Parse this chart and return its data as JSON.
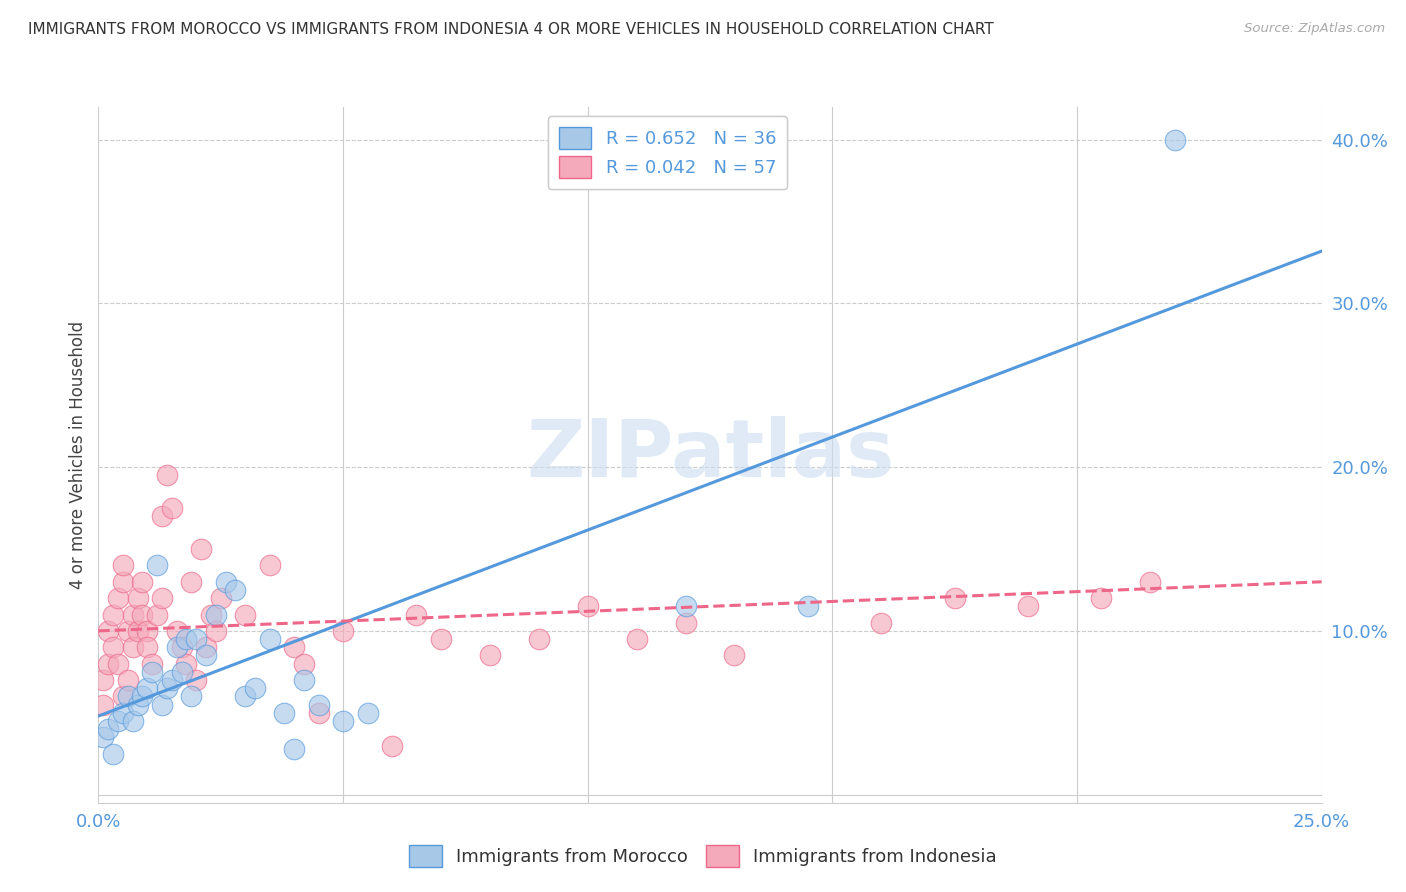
{
  "title": "IMMIGRANTS FROM MOROCCO VS IMMIGRANTS FROM INDONESIA 4 OR MORE VEHICLES IN HOUSEHOLD CORRELATION CHART",
  "source": "Source: ZipAtlas.com",
  "ylabel": "4 or more Vehicles in Household",
  "xlim": [
    0.0,
    0.25
  ],
  "ylim": [
    -0.005,
    0.42
  ],
  "x_ticks": [
    0.0,
    0.05,
    0.1,
    0.15,
    0.2,
    0.25
  ],
  "x_tick_labels": [
    "0.0%",
    "",
    "",
    "",
    "",
    "25.0%"
  ],
  "y_ticks": [
    0.0,
    0.1,
    0.2,
    0.3,
    0.4
  ],
  "y_tick_labels": [
    "",
    "10.0%",
    "20.0%",
    "30.0%",
    "40.0%"
  ],
  "morocco_color": "#a8c8e8",
  "indonesia_color": "#f4aabb",
  "morocco_line_color": "#5599dd",
  "indonesia_line_color": "#ee6688",
  "R_morocco": 0.652,
  "N_morocco": 36,
  "R_indonesia": 0.042,
  "N_indonesia": 57,
  "watermark": "ZIPatlas",
  "blue_line_x": [
    0.0,
    0.25
  ],
  "blue_line_y": [
    0.048,
    0.332
  ],
  "pink_line_x": [
    0.0,
    0.25
  ],
  "pink_line_y": [
    0.1,
    0.13
  ],
  "morocco_scatter_x": [
    0.001,
    0.002,
    0.003,
    0.004,
    0.005,
    0.006,
    0.007,
    0.008,
    0.009,
    0.01,
    0.011,
    0.012,
    0.013,
    0.014,
    0.015,
    0.016,
    0.017,
    0.018,
    0.019,
    0.02,
    0.022,
    0.024,
    0.026,
    0.028,
    0.03,
    0.032,
    0.035,
    0.038,
    0.04,
    0.042,
    0.045,
    0.05,
    0.055,
    0.12,
    0.145,
    0.22
  ],
  "morocco_scatter_y": [
    0.035,
    0.04,
    0.025,
    0.045,
    0.05,
    0.06,
    0.045,
    0.055,
    0.06,
    0.065,
    0.075,
    0.14,
    0.055,
    0.065,
    0.07,
    0.09,
    0.075,
    0.095,
    0.06,
    0.095,
    0.085,
    0.11,
    0.13,
    0.125,
    0.06,
    0.065,
    0.095,
    0.05,
    0.028,
    0.07,
    0.055,
    0.045,
    0.05,
    0.115,
    0.115,
    0.4
  ],
  "indonesia_scatter_x": [
    0.001,
    0.001,
    0.002,
    0.002,
    0.003,
    0.003,
    0.004,
    0.004,
    0.005,
    0.005,
    0.005,
    0.006,
    0.006,
    0.007,
    0.007,
    0.008,
    0.008,
    0.009,
    0.009,
    0.01,
    0.01,
    0.011,
    0.012,
    0.013,
    0.013,
    0.014,
    0.015,
    0.016,
    0.017,
    0.018,
    0.019,
    0.02,
    0.021,
    0.022,
    0.023,
    0.024,
    0.025,
    0.03,
    0.035,
    0.04,
    0.042,
    0.045,
    0.05,
    0.06,
    0.065,
    0.07,
    0.08,
    0.09,
    0.1,
    0.11,
    0.12,
    0.13,
    0.16,
    0.175,
    0.19,
    0.205,
    0.215
  ],
  "indonesia_scatter_y": [
    0.055,
    0.07,
    0.08,
    0.1,
    0.09,
    0.11,
    0.12,
    0.08,
    0.13,
    0.14,
    0.06,
    0.1,
    0.07,
    0.11,
    0.09,
    0.12,
    0.1,
    0.13,
    0.11,
    0.1,
    0.09,
    0.08,
    0.11,
    0.12,
    0.17,
    0.195,
    0.175,
    0.1,
    0.09,
    0.08,
    0.13,
    0.07,
    0.15,
    0.09,
    0.11,
    0.1,
    0.12,
    0.11,
    0.14,
    0.09,
    0.08,
    0.05,
    0.1,
    0.03,
    0.11,
    0.095,
    0.085,
    0.095,
    0.115,
    0.095,
    0.105,
    0.085,
    0.105,
    0.12,
    0.115,
    0.12,
    0.13
  ]
}
